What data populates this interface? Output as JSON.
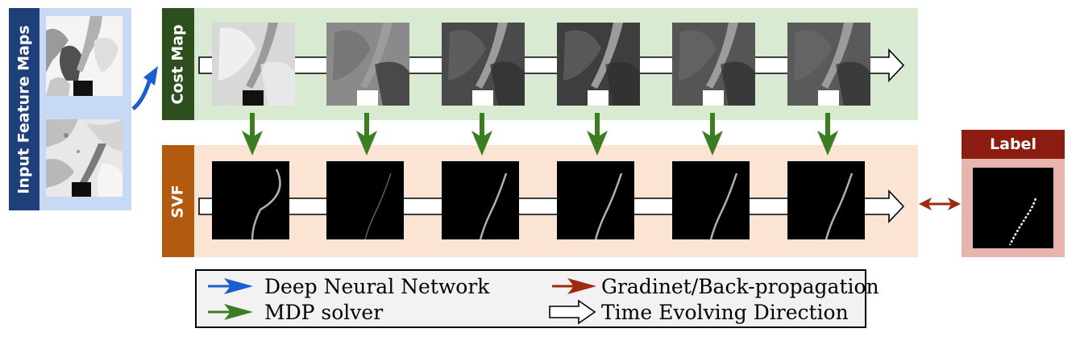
{
  "input": {
    "label": "Input Feature Maps",
    "bar_color": "#1f3f7a",
    "panel_color": "#c7d9f5"
  },
  "cost_map": {
    "label": "Cost Map",
    "bar_color": "#2d4f1d",
    "panel_color": "#d9ead3",
    "frame_count": 6
  },
  "svf": {
    "label": "SVF",
    "bar_color": "#b25a0d",
    "panel_color": "#fbe4d3",
    "frame_count": 6
  },
  "label_box": {
    "label": "Label",
    "header_color": "#8b1c0f",
    "panel_color": "#e8b4ae"
  },
  "legend": {
    "items": [
      {
        "text": "Deep Neural Network",
        "icon": "blue-arrow-icon",
        "color": "#1a5fd0"
      },
      {
        "text": "MDP solver",
        "icon": "green-arrow-icon",
        "color": "#3d7d22"
      },
      {
        "text": "Gradinet/Back-propagation",
        "icon": "red-arrow-icon",
        "color": "#9e2a10"
      },
      {
        "text": "Time Evolving Direction",
        "icon": "white-arrow-icon",
        "color": "#ffffff"
      }
    ]
  },
  "colors": {
    "mdp_arrow": "#3d7d22",
    "dnn_arrow": "#1a5fd0",
    "grad_arrow": "#9e2a10"
  }
}
